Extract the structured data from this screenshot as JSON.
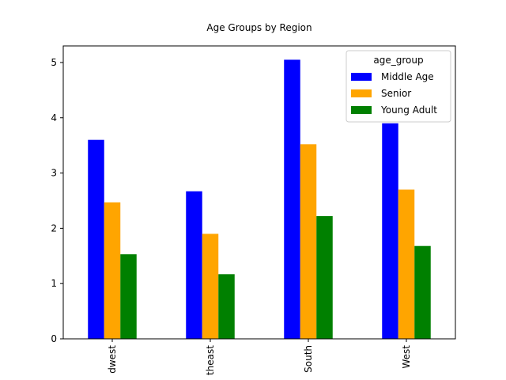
{
  "chart_data": {
    "type": "bar",
    "title": "Age Groups by Region",
    "xlabel": "",
    "ylabel": "",
    "categories": [
      "Midwest",
      "Northeast",
      "South",
      "West"
    ],
    "category_labels": [
      "dwest",
      "theast",
      "South",
      "West"
    ],
    "series": [
      {
        "name": "Middle Age",
        "color": "#0000ff",
        "values": [
          3.6,
          2.67,
          5.05,
          3.9
        ]
      },
      {
        "name": "Senior",
        "color": "#ffa500",
        "values": [
          2.47,
          1.9,
          3.52,
          2.7
        ]
      },
      {
        "name": "Young Adult",
        "color": "#008000",
        "values": [
          1.53,
          1.17,
          2.22,
          1.68
        ]
      }
    ],
    "ylim": [
      0,
      5.3
    ],
    "yticks": [
      0,
      1,
      2,
      3,
      4,
      5
    ],
    "legend": {
      "title": "age_group",
      "position": "top-right"
    },
    "grid": false
  }
}
